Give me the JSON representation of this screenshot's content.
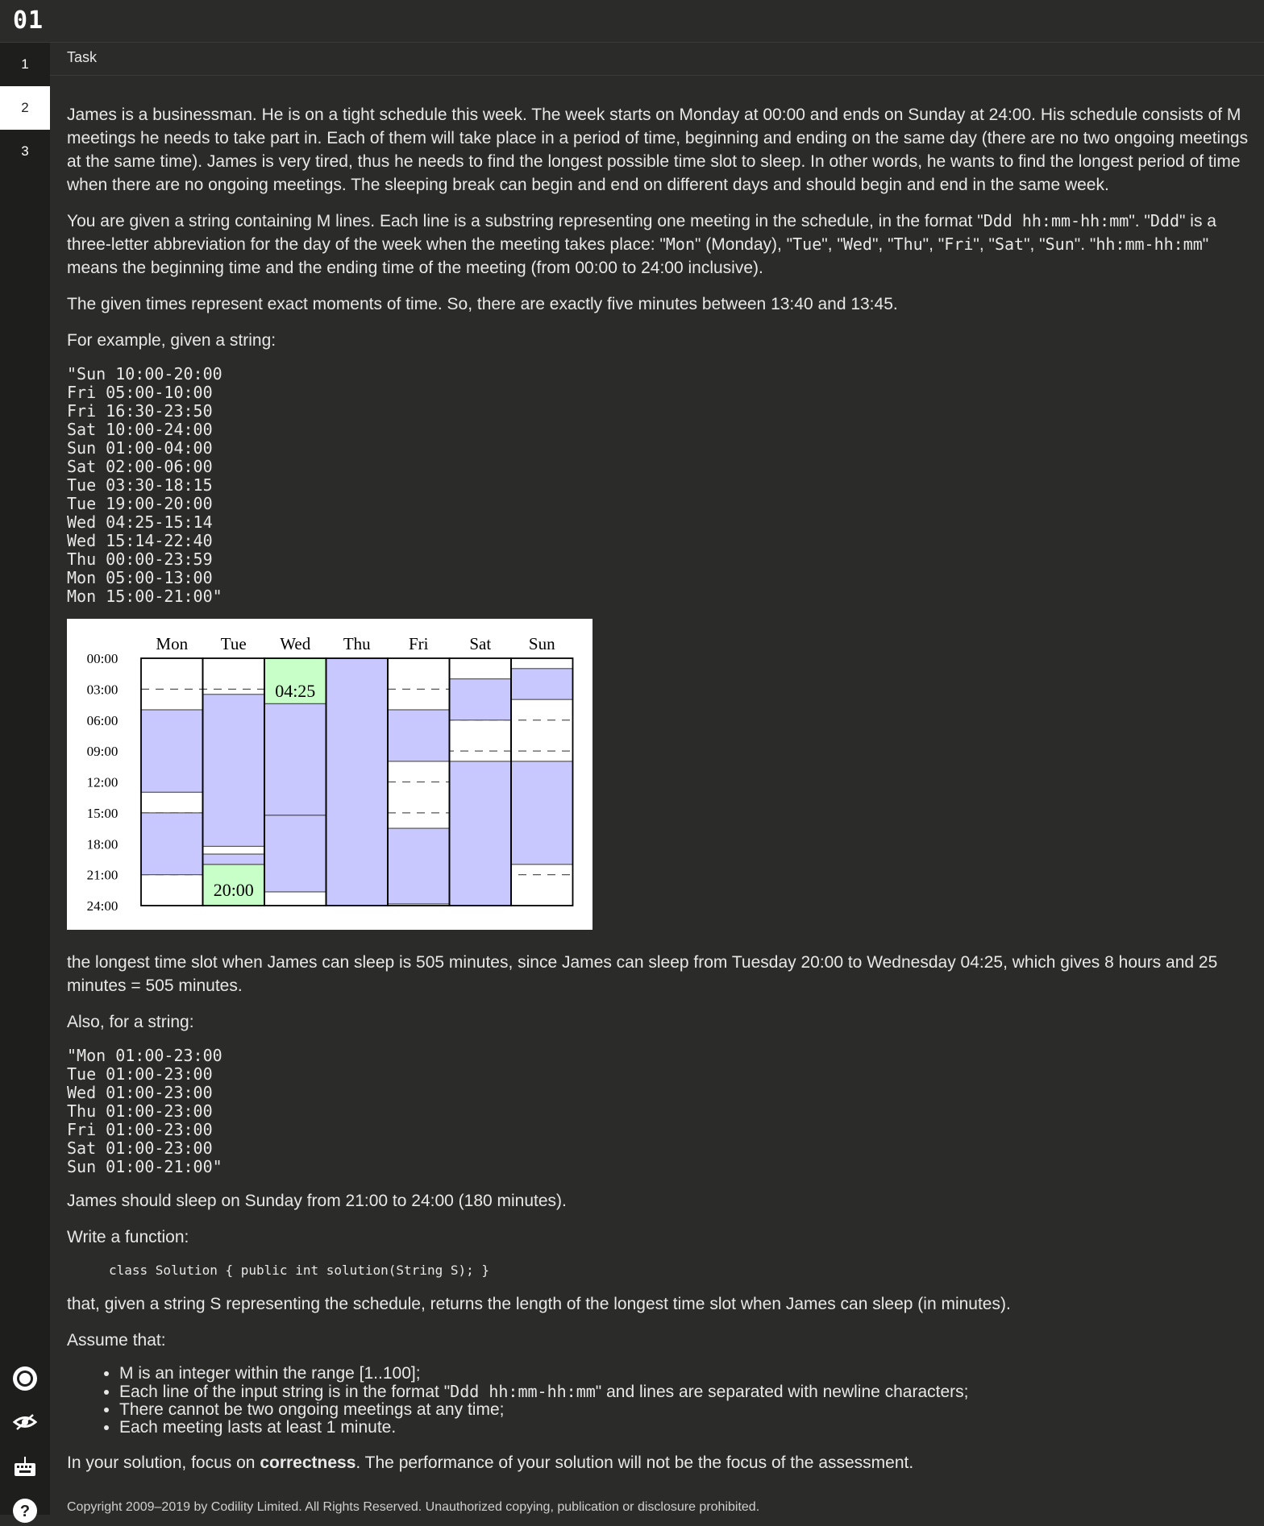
{
  "app": {
    "logo": "01"
  },
  "sidebar": {
    "items": [
      {
        "label": "1"
      },
      {
        "label": "2"
      },
      {
        "label": "3"
      }
    ],
    "icons": [
      "settings-icon",
      "visibility-icon",
      "keyboard-icon",
      "help-icon"
    ]
  },
  "tab": {
    "label": "Task"
  },
  "content": {
    "p1": "James is a businessman. He is on a tight schedule this week. The week starts on Monday at 00:00 and ends on Sunday at 24:00. His schedule consists of M meetings he needs to take part in. Each of them will take place in a period of time, beginning and ending on the same day (there are no two ongoing meetings at the same time). James is very tired, thus he needs to find the longest possible time slot to sleep. In other words, he wants to find the longest period of time when there are no ongoing meetings. The sleeping break can begin and end on different days and should begin and end in the same week.",
    "p2a": "You are given a string containing M lines. Each line is a substring representing one meeting in the schedule, in the format \"",
    "p2_code1": "Ddd hh:mm-hh:mm",
    "p2b": "\". \"",
    "p2_code2": "Ddd",
    "p2c": "\" is a three-letter abbreviation for the day of the week when the meeting takes place: \"",
    "p2_mon": "Mon",
    "p2d": "\" (Monday), \"",
    "p2_tue": "Tue",
    "p2_sep1": "\", \"",
    "p2_wed": "Wed",
    "p2_sep2": "\", \"",
    "p2_thu": "Thu",
    "p2_sep3": "\", \"",
    "p2_fri": "Fri",
    "p2_sep4": "\", \"",
    "p2_sat": "Sat",
    "p2_sep5": "\", \"",
    "p2_sun": "Sun",
    "p2e": "\". \"",
    "p2_code3": "hh:mm-hh:mm",
    "p2f": "\" means the beginning time and the ending time of the meeting (from 00:00 to 24:00 inclusive).",
    "p3": "The given times represent exact moments of time. So, there are exactly five minutes between 13:40 and 13:45.",
    "p4": "For example, given a string:",
    "example1": "\"Sun 10:00-20:00\nFri 05:00-10:00\nFri 16:30-23:50\nSat 10:00-24:00\nSun 01:00-04:00\nSat 02:00-06:00\nTue 03:30-18:15\nTue 19:00-20:00\nWed 04:25-15:14\nWed 15:14-22:40\nThu 00:00-23:59\nMon 05:00-13:00\nMon 15:00-21:00\"",
    "p5": "the longest time slot when James can sleep is 505 minutes, since James can sleep from Tuesday 20:00 to Wednesday 04:25, which gives 8 hours and 25 minutes = 505 minutes.",
    "p6": "Also, for a string:",
    "example2": "\"Mon 01:00-23:00\nTue 01:00-23:00\nWed 01:00-23:00\nThu 01:00-23:00\nFri 01:00-23:00\nSat 01:00-23:00\nSun 01:00-21:00\"",
    "p7": "James should sleep on Sunday from 21:00 to 24:00 (180 minutes).",
    "p8": "Write a function:",
    "code": "class Solution { public int solution(String S); }",
    "p9": "that, given a string S representing the schedule, returns the length of the longest time slot when James can sleep (in minutes).",
    "p10": "Assume that:",
    "assume": {
      "a1": "M is an integer within the range [1..100];",
      "a2a": "Each line of the input string is in the format \"",
      "a2_code": "Ddd hh:mm-hh:mm",
      "a2b": "\" and lines are separated with newline characters;",
      "a3": "There cannot be two ongoing meetings at any time;",
      "a4": "Each meeting lasts at least 1 minute."
    },
    "p11a": "In your solution, focus on ",
    "p11_bold": "correctness",
    "p11b": ". The performance of your solution will not be the focus of the assessment.",
    "copyright": "Copyright 2009–2019 by Codility Limited. All Rights Reserved. Unauthorized copying, publication or disclosure prohibited."
  },
  "figure": {
    "days": [
      "Mon",
      "Tue",
      "Wed",
      "Thu",
      "Fri",
      "Sat",
      "Sun"
    ],
    "time_labels": [
      "00:00",
      "03:00",
      "06:00",
      "09:00",
      "12:00",
      "15:00",
      "18:00",
      "21:00",
      "24:00"
    ],
    "meetings": [
      {
        "day": 0,
        "start": "05:00",
        "end": "13:00"
      },
      {
        "day": 0,
        "start": "15:00",
        "end": "21:00"
      },
      {
        "day": 1,
        "start": "03:30",
        "end": "18:15"
      },
      {
        "day": 1,
        "start": "19:00",
        "end": "20:00"
      },
      {
        "day": 2,
        "start": "04:25",
        "end": "15:14"
      },
      {
        "day": 2,
        "start": "15:14",
        "end": "22:40"
      },
      {
        "day": 3,
        "start": "00:00",
        "end": "23:59"
      },
      {
        "day": 4,
        "start": "05:00",
        "end": "10:00"
      },
      {
        "day": 4,
        "start": "16:30",
        "end": "23:50"
      },
      {
        "day": 5,
        "start": "02:00",
        "end": "06:00"
      },
      {
        "day": 5,
        "start": "10:00",
        "end": "24:00"
      },
      {
        "day": 6,
        "start": "01:00",
        "end": "04:00"
      },
      {
        "day": 6,
        "start": "10:00",
        "end": "20:00"
      }
    ],
    "sleep": {
      "start_day": 1,
      "start": "20:00",
      "end_day": 2,
      "end": "04:25",
      "start_label": "20:00",
      "end_label": "04:25"
    },
    "colors": {
      "meeting": "#c8c8ff",
      "sleep": "#c8ffc8",
      "border": "#000000",
      "dash": "#555555"
    }
  }
}
